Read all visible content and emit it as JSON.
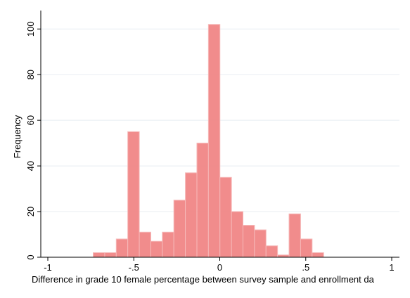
{
  "chart_data": {
    "type": "bar",
    "subtype": "histogram",
    "xlabel": "Difference in grade 10 female percentage between survey sample and enrollment da",
    "ylabel": "Frequency",
    "xlim": [
      -1,
      1
    ],
    "ylim": [
      0,
      105
    ],
    "x_ticks": [
      {
        "value": -1,
        "label": "-1"
      },
      {
        "value": -0.5,
        "label": "-.5"
      },
      {
        "value": 0,
        "label": "0"
      },
      {
        "value": 0.5,
        "label": ".5"
      },
      {
        "value": 1,
        "label": "1"
      }
    ],
    "y_ticks": [
      {
        "value": 0,
        "label": "0"
      },
      {
        "value": 20,
        "label": "20"
      },
      {
        "value": 40,
        "label": "40"
      },
      {
        "value": 60,
        "label": "60"
      },
      {
        "value": 80,
        "label": "80"
      },
      {
        "value": 100,
        "label": "100"
      }
    ],
    "grid": true,
    "bar_color": "#F08080",
    "bins": [
      {
        "start": -0.736,
        "end": -0.669,
        "count": 2
      },
      {
        "start": -0.669,
        "end": -0.602,
        "count": 2
      },
      {
        "start": -0.602,
        "end": -0.535,
        "count": 8
      },
      {
        "start": -0.535,
        "end": -0.468,
        "count": 55
      },
      {
        "start": -0.468,
        "end": -0.401,
        "count": 11
      },
      {
        "start": -0.401,
        "end": -0.334,
        "count": 7
      },
      {
        "start": -0.334,
        "end": -0.267,
        "count": 11
      },
      {
        "start": -0.267,
        "end": -0.2,
        "count": 25
      },
      {
        "start": -0.2,
        "end": -0.133,
        "count": 37
      },
      {
        "start": -0.133,
        "end": -0.066,
        "count": 50
      },
      {
        "start": -0.066,
        "end": 0.001,
        "count": 102
      },
      {
        "start": 0.001,
        "end": 0.068,
        "count": 35
      },
      {
        "start": 0.068,
        "end": 0.135,
        "count": 20
      },
      {
        "start": 0.135,
        "end": 0.202,
        "count": 14
      },
      {
        "start": 0.202,
        "end": 0.269,
        "count": 12
      },
      {
        "start": 0.269,
        "end": 0.336,
        "count": 5
      },
      {
        "start": 0.336,
        "end": 0.403,
        "count": 1
      },
      {
        "start": 0.403,
        "end": 0.47,
        "count": 19
      },
      {
        "start": 0.47,
        "end": 0.537,
        "count": 8
      },
      {
        "start": 0.537,
        "end": 0.604,
        "count": 2
      }
    ]
  }
}
